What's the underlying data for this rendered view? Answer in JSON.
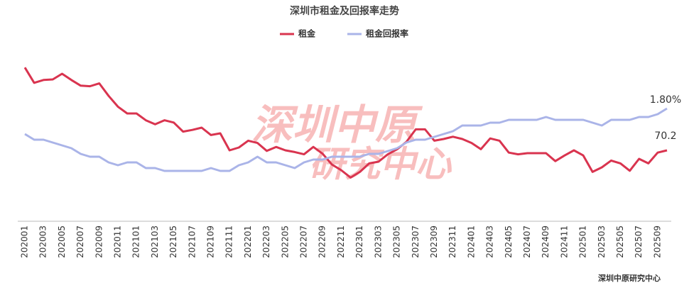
{
  "chart_data": {
    "type": "line",
    "title": "深圳市租金及回报率走势",
    "source": "深圳中原研究中心",
    "watermark": [
      "深圳中原",
      "研究中心"
    ],
    "categories": [
      "202001",
      null,
      "202003",
      null,
      "202005",
      null,
      "202007",
      null,
      "202009",
      null,
      "202011",
      null,
      "202101",
      null,
      "202103",
      null,
      "202105",
      null,
      "202107",
      null,
      "202109",
      null,
      "202111",
      null,
      "202201",
      null,
      "202203",
      null,
      "202205",
      null,
      "202207",
      null,
      "202209",
      null,
      "202211",
      null,
      "202301",
      null,
      "202303",
      null,
      "202305",
      null,
      "202307",
      null,
      "202309",
      null,
      "202311",
      null,
      "202401",
      null,
      "202403",
      null,
      "202405",
      null,
      "202407",
      null,
      "202409",
      null,
      "202411",
      null,
      "202501",
      null,
      "202503",
      null,
      "202505",
      null,
      "202507",
      null,
      "202509",
      null
    ],
    "ylim": [
      57.95,
      89.2
    ],
    "y2lim": [
      1.4075,
      2.0325
    ],
    "series": [
      {
        "name": "租金",
        "color": "#d9344f",
        "values": [
          84.8,
          82.1,
          82.6,
          82.7,
          83.7,
          82.6,
          81.6,
          81.5,
          82.0,
          79.8,
          77.9,
          76.7,
          76.7,
          75.5,
          74.8,
          75.5,
          75.1,
          73.5,
          73.8,
          74.2,
          72.9,
          73.2,
          70.2,
          70.7,
          71.9,
          71.5,
          70.1,
          70.8,
          70.2,
          69.9,
          69.5,
          70.8,
          69.6,
          67.7,
          66.7,
          65.4,
          66.4,
          67.9,
          68.2,
          69.5,
          70.4,
          71.7,
          73.9,
          73.9,
          71.9,
          72.2,
          72.6,
          72.2,
          71.5,
          70.4,
          72.3,
          71.9,
          69.8,
          69.5,
          69.7,
          69.7,
          69.7,
          68.3,
          69.3,
          70.2,
          69.3,
          66.4,
          67.2,
          68.4,
          67.9,
          66.6,
          68.7,
          67.9,
          69.8,
          70.2
        ]
      },
      {
        "name": "租金回报率",
        "color": "#aab4e8",
        "axis": "y2",
        "values": [
          1.71,
          1.69,
          1.69,
          1.68,
          1.67,
          1.66,
          1.64,
          1.63,
          1.63,
          1.61,
          1.6,
          1.61,
          1.61,
          1.59,
          1.59,
          1.58,
          1.58,
          1.58,
          1.58,
          1.58,
          1.59,
          1.58,
          1.58,
          1.6,
          1.61,
          1.63,
          1.61,
          1.61,
          1.6,
          1.59,
          1.61,
          1.62,
          1.62,
          1.63,
          1.63,
          1.63,
          1.63,
          1.64,
          1.64,
          1.65,
          1.66,
          1.68,
          1.69,
          1.69,
          1.7,
          1.71,
          1.72,
          1.74,
          1.74,
          1.74,
          1.75,
          1.75,
          1.76,
          1.76,
          1.76,
          1.76,
          1.77,
          1.76,
          1.76,
          1.76,
          1.76,
          1.75,
          1.74,
          1.76,
          1.76,
          1.76,
          1.77,
          1.77,
          1.78,
          1.8
        ],
        "value_labels": [
          null,
          null,
          null,
          null,
          null,
          null,
          null,
          null,
          null,
          null,
          null,
          null,
          null,
          null,
          null,
          null,
          null,
          null,
          null,
          null,
          null,
          null,
          null,
          null,
          null,
          null,
          null,
          null,
          null,
          null,
          null,
          null,
          null,
          null,
          null,
          null,
          null,
          null,
          null,
          null,
          null,
          null,
          null,
          null,
          null,
          null,
          null,
          null,
          null,
          null,
          null,
          null,
          null,
          null,
          null,
          null,
          null,
          null,
          null,
          null,
          null,
          null,
          null,
          null,
          null,
          null,
          null,
          null,
          null,
          "1.80%"
        ]
      }
    ]
  }
}
